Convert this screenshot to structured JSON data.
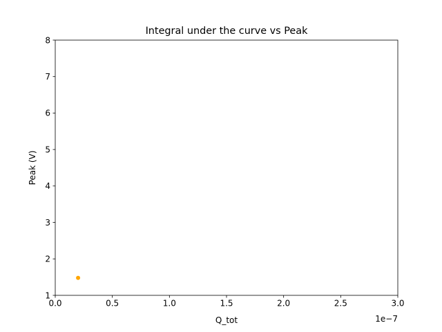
{
  "chart_data": {
    "type": "scatter",
    "title": "Integral under the curve vs Peak",
    "xlabel": "Q_tot",
    "ylabel": "Peak (V)",
    "x_offset_text": "1e−7",
    "xlim": [
      0.0,
      3.0
    ],
    "ylim": [
      1,
      8
    ],
    "x_ticks": [
      0.0,
      0.5,
      1.0,
      1.5,
      2.0,
      2.5,
      3.0
    ],
    "x_tick_labels": [
      "0.0",
      "0.5",
      "1.0",
      "1.5",
      "2.0",
      "2.5",
      "3.0"
    ],
    "y_ticks": [
      1,
      2,
      3,
      4,
      5,
      6,
      7,
      8
    ],
    "y_tick_labels": [
      "1",
      "2",
      "3",
      "4",
      "5",
      "6",
      "7",
      "8"
    ],
    "grid": false,
    "legend": "none",
    "series": [
      {
        "name": "data",
        "color": "#ffa500",
        "points": [
          {
            "x": 0.2,
            "y": 1.48
          }
        ]
      }
    ]
  }
}
